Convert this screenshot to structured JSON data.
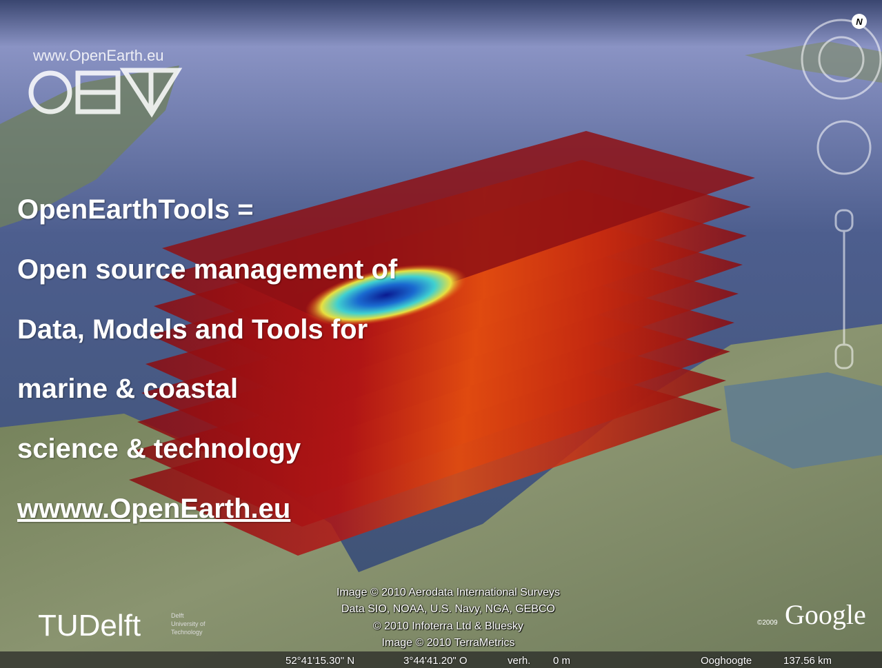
{
  "logo": {
    "url": "www.OpenEarth.eu"
  },
  "compass": {
    "north": "N"
  },
  "headline": {
    "lines": [
      "OpenEarthTools =",
      "Open source management of",
      "Data, Models and Tools for",
      "marine & coastal",
      "science & technology"
    ],
    "link": "wwww.OpenEarth.eu"
  },
  "attribution": [
    "Image © 2010 Aerodata International Surveys",
    "Data SIO, NOAA, U.S. Navy, NGA, GEBCO",
    "© 2010 Infoterra Ltd & Bluesky",
    "Image © 2010 TerraMetrics"
  ],
  "university": {
    "name": "TUDelft",
    "subtitle": [
      "Delft",
      "University of",
      "Technology"
    ]
  },
  "google": {
    "year": "©2009",
    "brand": "Google"
  },
  "status_bar": {
    "latitude": "52°41'15.30\" N",
    "longitude": "3°44'41.20\" O",
    "elevation_label": "verh.",
    "elevation": "0 m",
    "eye_altitude_label": "Ooghoogte",
    "eye_altitude": "137.56 km"
  }
}
